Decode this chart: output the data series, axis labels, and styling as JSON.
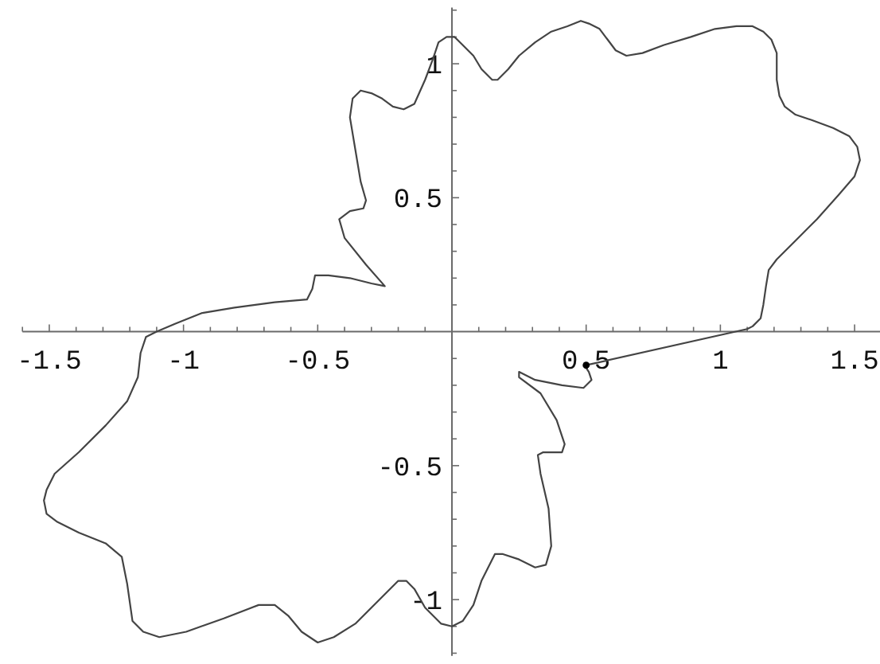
{
  "chart_data": {
    "type": "line",
    "xlim": [
      -1.6,
      1.6
    ],
    "ylim": [
      -1.21,
      1.21
    ],
    "xticks": [
      {
        "value": -1.6,
        "label": null
      },
      -1.5,
      {
        "value": -1.4,
        "label": null
      },
      {
        "value": -1.3,
        "label": null
      },
      {
        "value": -1.2,
        "label": null
      },
      {
        "value": -1.1,
        "label": null
      },
      -1,
      {
        "value": -0.9,
        "label": null
      },
      {
        "value": -0.8,
        "label": null
      },
      {
        "value": -0.7,
        "label": null
      },
      {
        "value": -0.6,
        "label": null
      },
      -0.5,
      {
        "value": -0.4,
        "label": null
      },
      {
        "value": -0.3,
        "label": null
      },
      {
        "value": -0.2,
        "label": null
      },
      {
        "value": -0.1,
        "label": null
      },
      {
        "value": 0.1,
        "label": null
      },
      {
        "value": 0.2,
        "label": null
      },
      {
        "value": 0.3,
        "label": null
      },
      {
        "value": 0.4,
        "label": null
      },
      0.5,
      {
        "value": 0.6,
        "label": null
      },
      {
        "value": 0.7,
        "label": null
      },
      {
        "value": 0.8,
        "label": null
      },
      {
        "value": 0.9,
        "label": null
      },
      1,
      {
        "value": 1.1,
        "label": null
      },
      {
        "value": 1.2,
        "label": null
      },
      {
        "value": 1.3,
        "label": null
      },
      {
        "value": 1.4,
        "label": null
      },
      1.5
    ],
    "yticks": [
      {
        "value": -1.2,
        "label": null
      },
      {
        "value": -1.1,
        "label": null
      },
      -1,
      {
        "value": -0.9,
        "label": null
      },
      {
        "value": -0.8,
        "label": null
      },
      {
        "value": -0.7,
        "label": null
      },
      {
        "value": -0.6,
        "label": null
      },
      -0.5,
      {
        "value": -0.4,
        "label": null
      },
      {
        "value": -0.3,
        "label": null
      },
      {
        "value": -0.2,
        "label": null
      },
      {
        "value": -0.1,
        "label": null
      },
      {
        "value": 0.1,
        "label": null
      },
      {
        "value": 0.2,
        "label": null
      },
      {
        "value": 0.3,
        "label": null
      },
      {
        "value": 0.4,
        "label": null
      },
      0.5,
      {
        "value": 0.6,
        "label": null
      },
      {
        "value": 0.7,
        "label": null
      },
      {
        "value": 0.8,
        "label": null
      },
      {
        "value": 0.9,
        "label": null
      },
      1,
      {
        "value": 1.1,
        "label": null
      },
      {
        "value": 1.2,
        "label": null
      }
    ],
    "series": [
      {
        "color": "#444444",
        "x": [
          0.5,
          1.1,
          1.12,
          1.15,
          1.16,
          1.17,
          1.18,
          1.21,
          1.28,
          1.36,
          1.44,
          1.5,
          1.52,
          1.51,
          1.48,
          1.42,
          1.34,
          1.28,
          1.24,
          1.22,
          1.21,
          1.21,
          1.19,
          1.16,
          1.12,
          1.06,
          0.98,
          0.89,
          0.79,
          0.71,
          0.65,
          0.61,
          0.58,
          0.55,
          0.51,
          0.48,
          0.43,
          0.37,
          0.31,
          0.25,
          0.21,
          0.17,
          0.15,
          0.11,
          0.08,
          0.04,
          0.01,
          -0.02,
          -0.05,
          -0.07,
          -0.1,
          -0.14,
          -0.18,
          -0.22,
          -0.26,
          -0.3,
          -0.34,
          -0.37,
          -0.38,
          -0.36,
          -0.34,
          -0.32,
          -0.33,
          -0.38,
          -0.42,
          -0.4,
          -0.32,
          -0.25,
          -0.3,
          -0.38,
          -0.46,
          -0.51,
          -0.52,
          -0.54,
          -0.66,
          -0.81,
          -0.93,
          -1.03,
          -1.1,
          -1.14,
          -1.16,
          -1.17,
          -1.21,
          -1.29,
          -1.39,
          -1.48,
          -1.51,
          -1.52,
          -1.51,
          -1.47,
          -1.39,
          -1.29,
          -1.23,
          -1.21,
          -1.19,
          -1.15,
          -1.09,
          -0.99,
          -0.85,
          -0.72,
          -0.66,
          -0.61,
          -0.56,
          -0.5,
          -0.44,
          -0.36,
          -0.28,
          -0.2,
          -0.17,
          -0.14,
          -0.1,
          -0.04,
          0,
          0.04,
          0.08,
          0.11,
          0.16,
          0.19,
          0.25,
          0.31,
          0.35,
          0.37,
          0.36,
          0.33,
          0.32,
          0.34,
          0.41,
          0.42,
          0.39,
          0.33,
          0.25,
          0.25,
          0.31,
          0.41,
          0.49,
          0.52,
          0.51,
          0.5
        ],
        "values": [
          -0.125,
          0.01,
          0.02,
          0.05,
          0.1,
          0.17,
          0.23,
          0.27,
          0.34,
          0.42,
          0.51,
          0.58,
          0.64,
          0.69,
          0.73,
          0.76,
          0.79,
          0.81,
          0.84,
          0.88,
          0.94,
          1.04,
          1.09,
          1.12,
          1.14,
          1.14,
          1.13,
          1.1,
          1.07,
          1.04,
          1.03,
          1.05,
          1.09,
          1.13,
          1.15,
          1.16,
          1.14,
          1.12,
          1.08,
          1.03,
          0.98,
          0.94,
          0.94,
          0.98,
          1.03,
          1.07,
          1.1,
          1.1,
          1.08,
          1.02,
          0.94,
          0.85,
          0.83,
          0.84,
          0.87,
          0.89,
          0.9,
          0.87,
          0.8,
          0.68,
          0.56,
          0.49,
          0.46,
          0.45,
          0.42,
          0.35,
          0.25,
          0.17,
          0.18,
          0.2,
          0.21,
          0.21,
          0.16,
          0.12,
          0.11,
          0.09,
          0.07,
          0.03,
          0,
          -0.02,
          -0.08,
          -0.17,
          -0.26,
          -0.35,
          -0.45,
          -0.53,
          -0.59,
          -0.63,
          -0.68,
          -0.71,
          -0.75,
          -0.79,
          -0.84,
          -0.94,
          -1.08,
          -1.12,
          -1.14,
          -1.12,
          -1.07,
          -1.02,
          -1.02,
          -1.06,
          -1.12,
          -1.16,
          -1.14,
          -1.09,
          -1.01,
          -0.93,
          -0.93,
          -0.96,
          -1.03,
          -1.09,
          -1.1,
          -1.08,
          -1.02,
          -0.93,
          -0.83,
          -0.83,
          -0.85,
          -0.88,
          -0.87,
          -0.8,
          -0.66,
          -0.53,
          -0.46,
          -0.45,
          -0.45,
          -0.42,
          -0.33,
          -0.23,
          -0.17,
          -0.15,
          -0.18,
          -0.2,
          -0.21,
          -0.18,
          -0.15,
          -0.135
        ]
      },
      {
        "type": "scatter",
        "marker": "circle",
        "color": "#000000",
        "x": [
          0.5
        ],
        "values": [
          -0.125
        ]
      }
    ]
  }
}
